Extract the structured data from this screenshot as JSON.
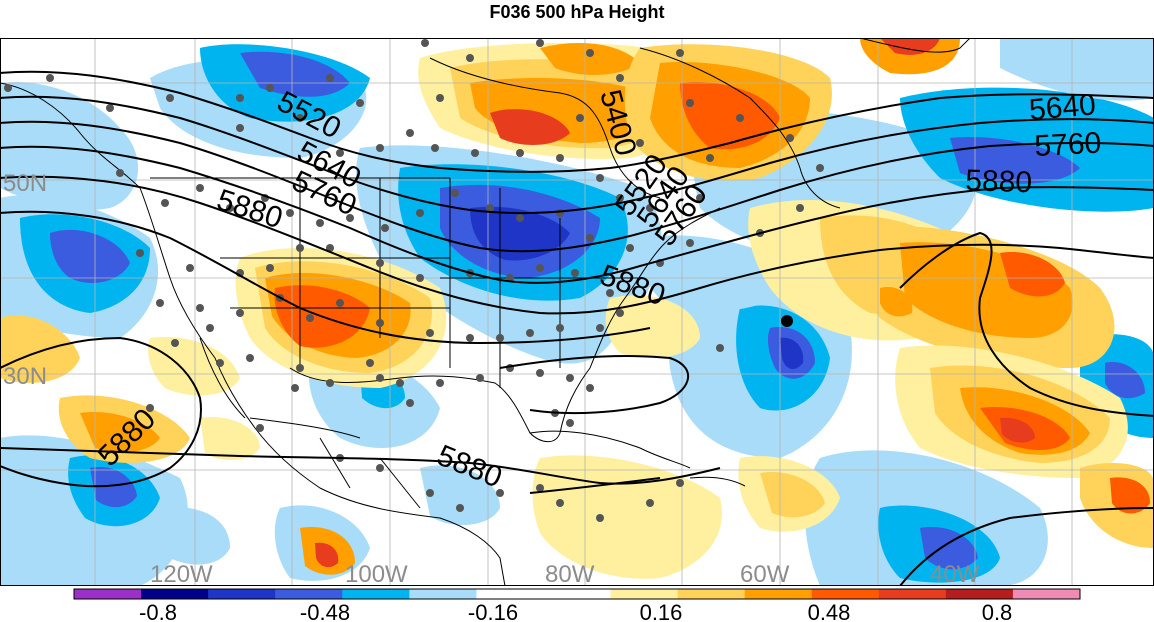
{
  "title": "F036 500 hPa Height",
  "colors": {
    "c_m1": "#9b30c8",
    "c_m2": "#00008a",
    "c_m3": "#1e35c8",
    "c_m4": "#3c5ce0",
    "c_m5": "#00b4f0",
    "c_m6": "#a8dcf8",
    "c_zero": "#ffffff",
    "c_p1": "#fff0a0",
    "c_p2": "#ffd25a",
    "c_p3": "#ffa000",
    "c_p4": "#ff5a00",
    "c_p5": "#e83c1e",
    "c_p6": "#b41e1e",
    "c_p7": "#f08cb4",
    "contour": "#000000",
    "coast": "#000000",
    "station_dot": "#555555",
    "grid_label": "#8c8c8c"
  },
  "latitude_labels": [
    "50N",
    "30N"
  ],
  "longitude_labels": [
    "120W",
    "100W",
    "80W",
    "60W",
    "40W"
  ],
  "contour_labels": [
    "5520",
    "5640",
    "5760",
    "5880",
    "5400",
    "5520",
    "5640",
    "5760",
    "5880",
    "5640",
    "5760",
    "5880",
    "5880",
    "5880"
  ],
  "colorbar": {
    "tick_labels": [
      "-0.8",
      "-0.48",
      "-0.16",
      "0.16",
      "0.48",
      "0.8"
    ],
    "bins": [
      "c_m1",
      "c_m2",
      "c_m3",
      "c_m4",
      "c_m5",
      "c_m6",
      "c_zero",
      "c_zero",
      "c_p1",
      "c_p2",
      "c_p3",
      "c_p4",
      "c_p5",
      "c_p6",
      "c_p7"
    ]
  }
}
